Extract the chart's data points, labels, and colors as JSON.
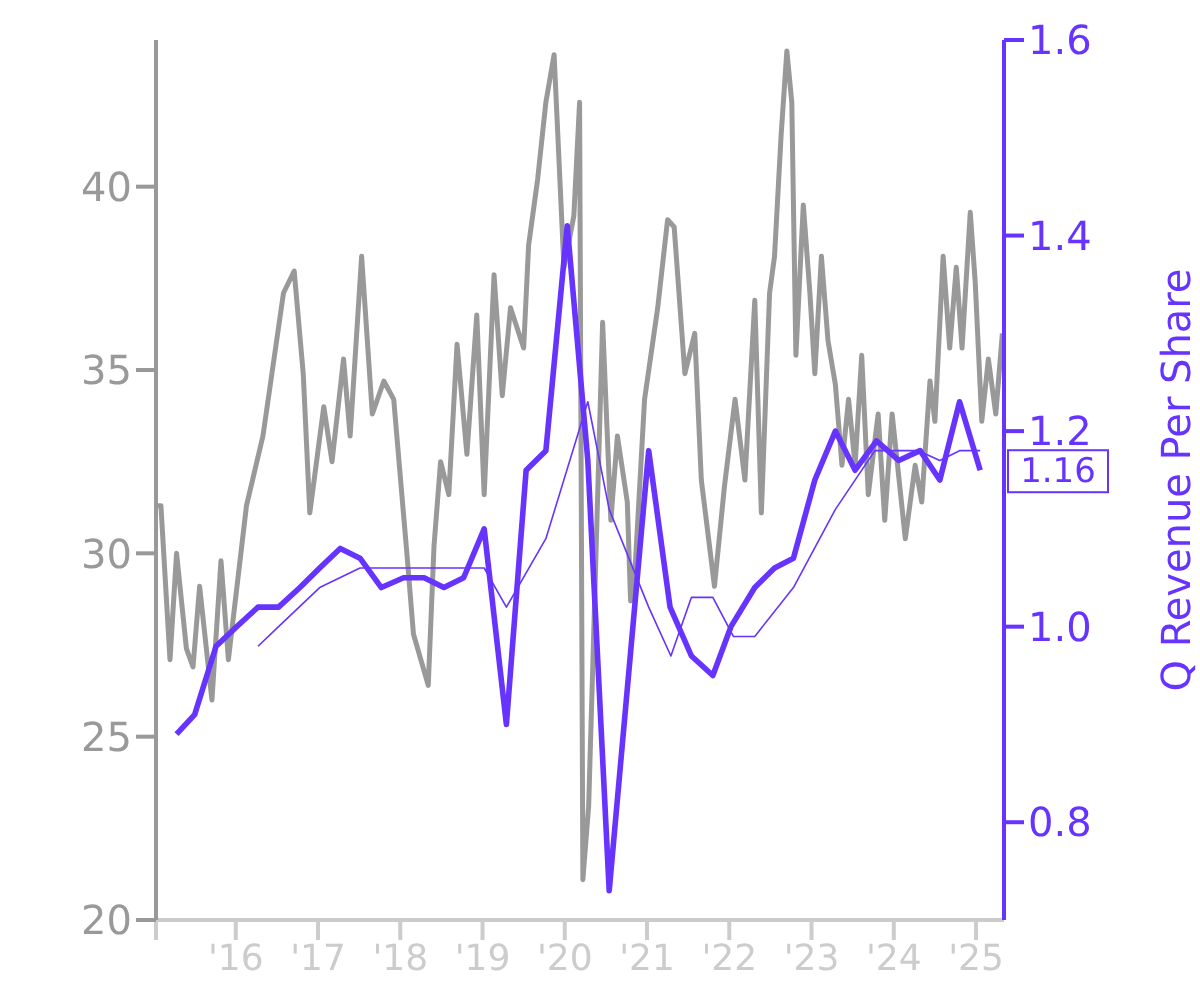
{
  "chart_data": {
    "type": "line",
    "y2label": "Q Revenue Per Share",
    "xlim": [
      2015.03,
      2025.34
    ],
    "xticks": [
      {
        "value": 2015.03,
        "label": null
      },
      {
        "value": 2016,
        "label": "'16"
      },
      {
        "value": 2017,
        "label": "'17"
      },
      {
        "value": 2018,
        "label": "'18"
      },
      {
        "value": 2019,
        "label": "'19"
      },
      {
        "value": 2020,
        "label": "'20"
      },
      {
        "value": 2021,
        "label": "'21"
      },
      {
        "value": 2022,
        "label": "'22"
      },
      {
        "value": 2023,
        "label": "'23"
      },
      {
        "value": 2024,
        "label": "'24"
      },
      {
        "value": 2025,
        "label": "'25"
      }
    ],
    "ylim": [
      20,
      44
    ],
    "yticks": [
      20,
      25,
      30,
      35,
      40
    ],
    "y2lim": [
      0.7,
      1.6
    ],
    "y2ticks": [
      {
        "value": 0.8,
        "label": "0.8"
      },
      {
        "value": 1.0,
        "label": "1.0"
      },
      {
        "value": 1.2,
        "label": "1.2"
      },
      {
        "value": 1.4,
        "label": "1.4"
      },
      {
        "value": 1.6,
        "label": "1.6"
      }
    ],
    "marker": "none",
    "annotations": [
      "1.16"
    ],
    "series": [
      {
        "color": "#999999",
        "x": [
          2015.03,
          2015.09,
          2015.2,
          2015.28,
          2015.4,
          2015.48,
          2015.56,
          2015.71,
          2015.82,
          2015.91,
          2016.13,
          2016.33,
          2016.58,
          2016.71,
          2016.82,
          2016.9,
          2017.07,
          2017.17,
          2017.31,
          2017.39,
          2017.53,
          2017.66,
          2017.8,
          2017.92,
          2018.08,
          2018.16,
          2018.34,
          2018.41,
          2018.49,
          2018.59,
          2018.69,
          2018.81,
          2018.93,
          2019.02,
          2019.14,
          2019.24,
          2019.34,
          2019.5,
          2019.56,
          2019.67,
          2019.77,
          2019.87,
          2019.99,
          2020.11,
          2020.18,
          2020.22,
          2020.29,
          2020.34,
          2020.46,
          2020.56,
          2020.64,
          2020.76,
          2020.8,
          2020.86,
          2020.97,
          2021.13,
          2021.25,
          2021.33,
          2021.46,
          2021.58,
          2021.66,
          2021.82,
          2021.94,
          2022.07,
          2022.19,
          2022.31,
          2022.39,
          2022.49,
          2022.55,
          2022.63,
          2022.7,
          2022.76,
          2022.81,
          2022.9,
          2022.98,
          2023.04,
          2023.12,
          2023.2,
          2023.29,
          2023.37,
          2023.45,
          2023.53,
          2023.61,
          2023.69,
          2023.81,
          2023.89,
          2023.98,
          2024.14,
          2024.26,
          2024.34,
          2024.44,
          2024.5,
          2024.6,
          2024.68,
          2024.76,
          2024.83,
          2024.93,
          2024.99,
          2025.07,
          2025.15,
          2025.24,
          2025.32
        ],
        "values": [
          31.3,
          31.3,
          27.1,
          30.0,
          27.4,
          26.9,
          29.1,
          26.0,
          29.8,
          27.1,
          31.3,
          33.2,
          37.1,
          37.7,
          34.9,
          31.1,
          34.0,
          32.5,
          35.3,
          33.2,
          38.1,
          33.8,
          34.7,
          34.2,
          30.0,
          27.8,
          26.4,
          30.2,
          32.5,
          31.6,
          35.7,
          32.7,
          36.5,
          31.6,
          37.6,
          34.3,
          36.7,
          35.6,
          38.4,
          40.2,
          42.3,
          43.6,
          37.8,
          39.2,
          42.3,
          21.1,
          23.1,
          26.9,
          36.3,
          30.9,
          33.2,
          31.4,
          28.7,
          29.8,
          34.2,
          36.7,
          39.1,
          38.9,
          34.9,
          36.0,
          32.0,
          29.1,
          31.8,
          34.2,
          32.0,
          36.9,
          31.1,
          37.1,
          38.1,
          41.4,
          43.7,
          42.3,
          35.4,
          39.5,
          37.1,
          34.9,
          38.1,
          35.8,
          34.6,
          32.4,
          34.2,
          32.4,
          35.4,
          31.6,
          33.8,
          30.9,
          33.8,
          30.4,
          32.4,
          31.4,
          34.7,
          33.6,
          38.1,
          35.6,
          37.8,
          35.6,
          39.3,
          37.4,
          33.6,
          35.3,
          33.8,
          36.0
        ]
      },
      {
        "color": "#6633ff",
        "axis": "y2",
        "x": [
          2015.28,
          2015.5,
          2015.76,
          2016.01,
          2016.27,
          2016.52,
          2016.78,
          2017.02,
          2017.27,
          2017.51,
          2017.77,
          2018.04,
          2018.29,
          2018.53,
          2018.77,
          2019.02,
          2019.29,
          2019.53,
          2019.77,
          2020.03,
          2020.28,
          2020.54,
          2021.02,
          2021.28,
          2021.54,
          2021.8,
          2022.02,
          2022.31,
          2022.55,
          2022.78,
          2023.04,
          2023.29,
          2023.53,
          2023.79,
          2024.06,
          2024.32,
          2024.56,
          2024.8,
          2025.05
        ],
        "values": [
          0.89,
          0.91,
          0.98,
          1.0,
          1.02,
          1.02,
          1.04,
          1.06,
          1.08,
          1.07,
          1.04,
          1.05,
          1.05,
          1.04,
          1.05,
          1.1,
          0.9,
          1.16,
          1.18,
          1.41,
          1.17,
          0.73,
          1.18,
          1.02,
          0.97,
          0.95,
          1.0,
          1.04,
          1.06,
          1.07,
          1.15,
          1.2,
          1.16,
          1.19,
          1.17,
          1.18,
          1.15,
          1.23,
          1.16
        ]
      },
      {
        "color": "#6633ff",
        "axis": "y2",
        "x": [
          2016.27,
          2016.52,
          2017.02,
          2017.51,
          2018.07,
          2019.02,
          2019.29,
          2019.77,
          2020.28,
          2020.54,
          2021.02,
          2021.29,
          2021.54,
          2021.8,
          2022.05,
          2022.31,
          2022.78,
          2023.29,
          2023.77,
          2024.3,
          2024.56,
          2024.8,
          2025.05
        ],
        "values": [
          0.98,
          1.0,
          1.04,
          1.06,
          1.06,
          1.06,
          1.02,
          1.09,
          1.23,
          1.12,
          1.02,
          0.97,
          1.03,
          1.03,
          0.99,
          0.99,
          1.04,
          1.12,
          1.18,
          1.18,
          1.17,
          1.18,
          1.18
        ]
      }
    ]
  }
}
